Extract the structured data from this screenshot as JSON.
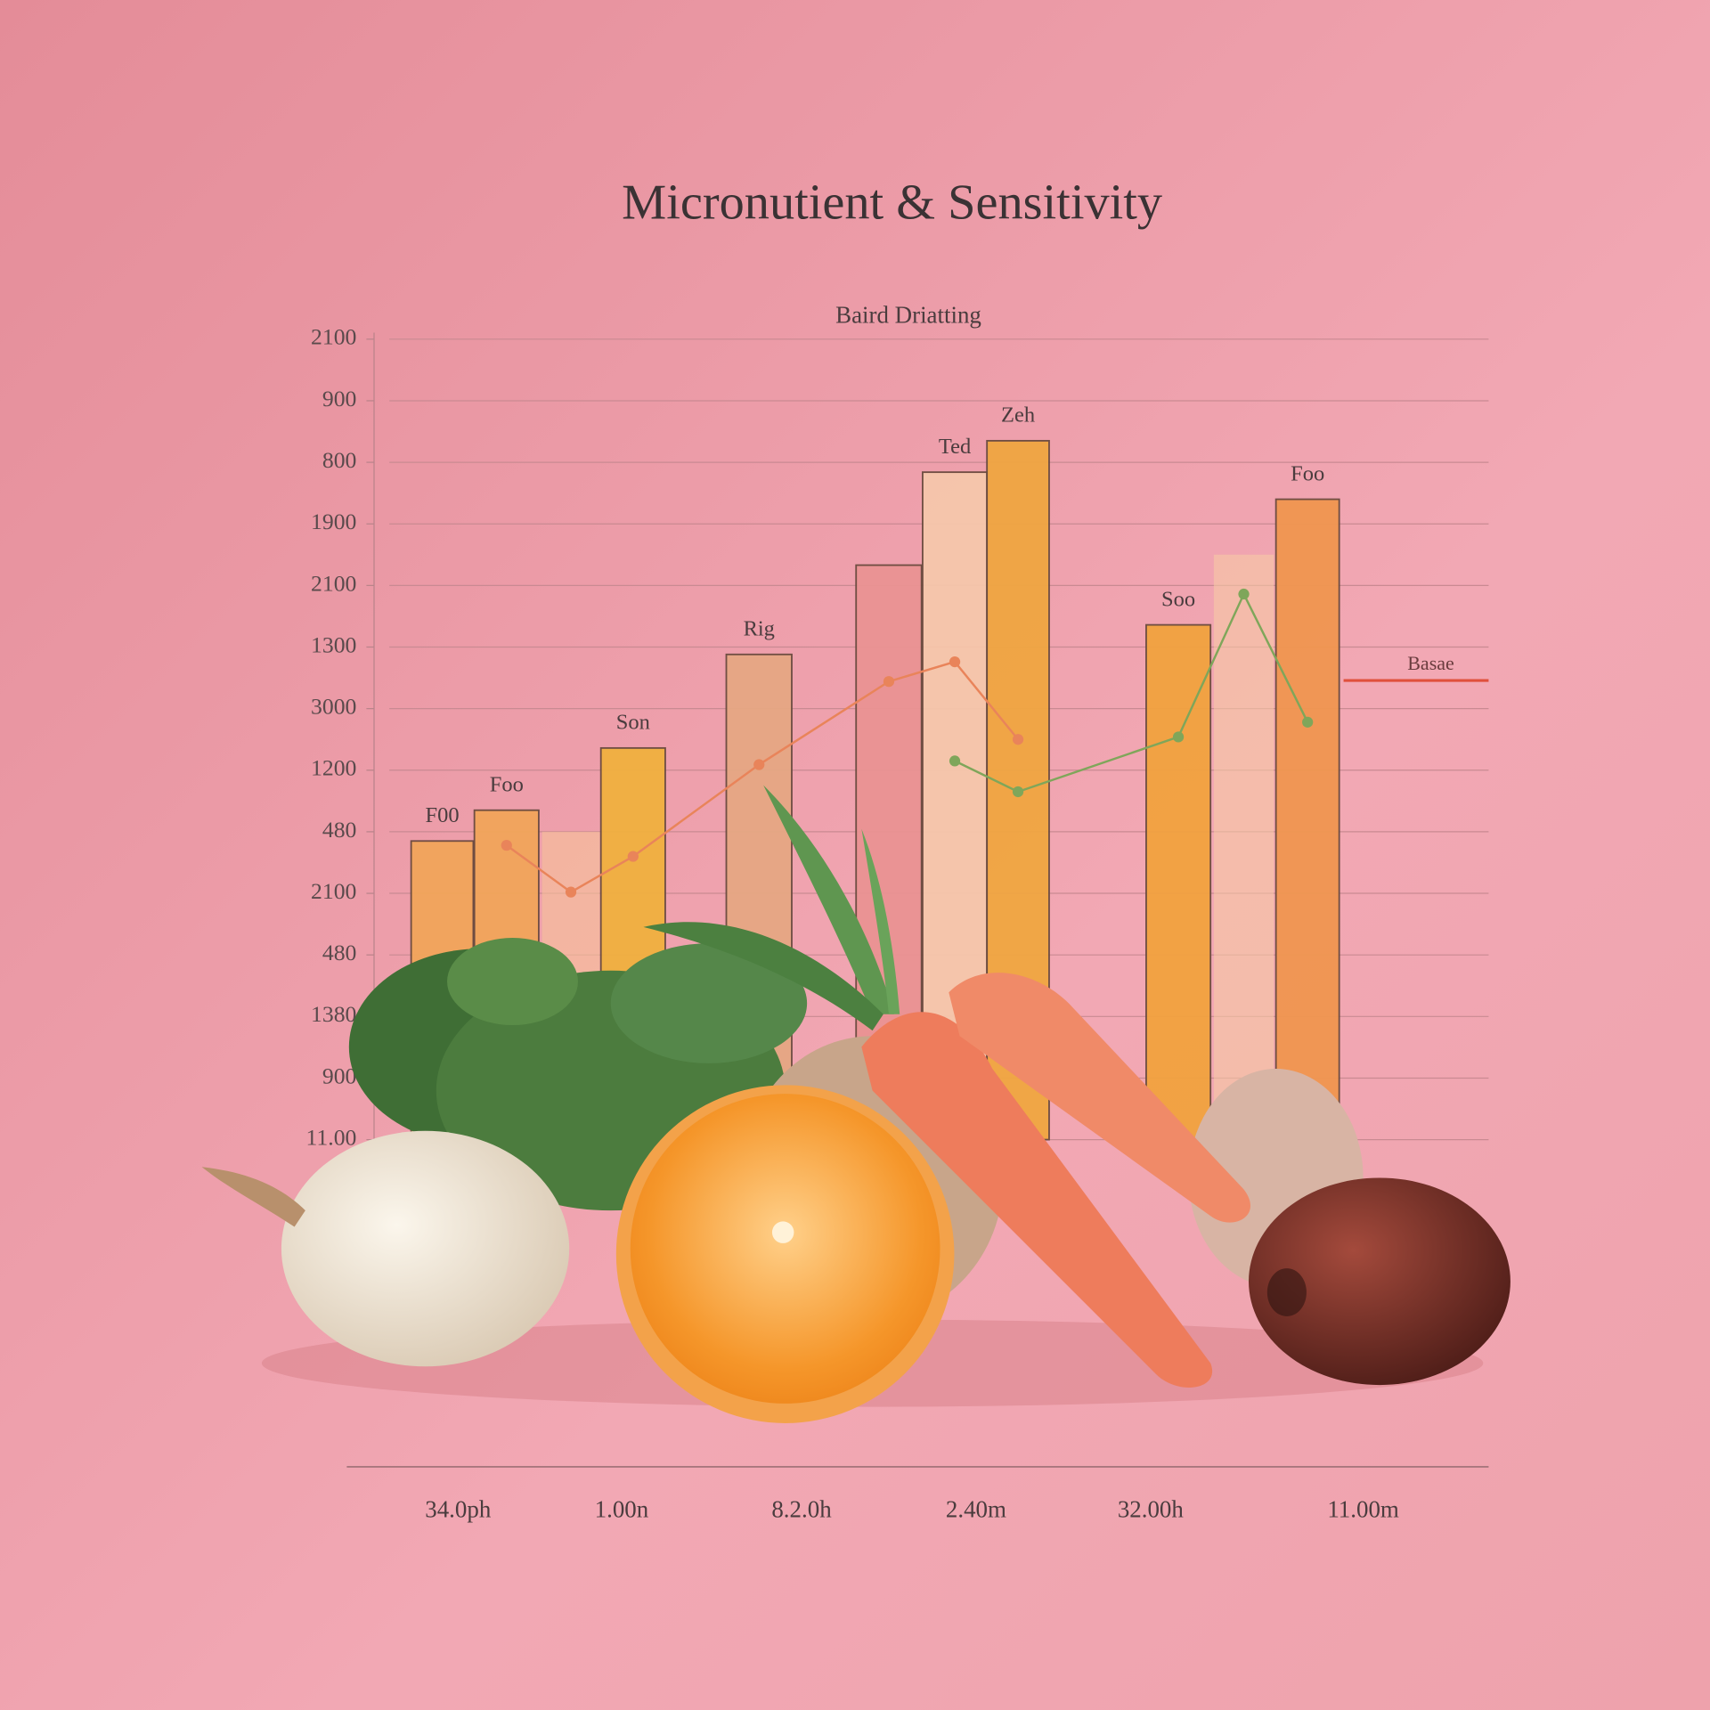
{
  "chart_data": {
    "type": "bar",
    "title": "Micronutient & Sensitivity",
    "subtitle": "Baird Driatting",
    "categories": [
      "F00",
      "Foo",
      null,
      "Son",
      "Rig",
      null,
      "Ted",
      "Zeh",
      "Soo",
      null,
      "Foo"
    ],
    "values": [
      4.85,
      5.35,
      5.0,
      6.36,
      7.88,
      9.33,
      10.84,
      11.35,
      8.36,
      9.5,
      10.4
    ],
    "colors": [
      "#f2a55a",
      "#f2a55a",
      "#f6c39a",
      "#f1b03f",
      "#e6a783",
      "#ea9393",
      "#f6c7ab",
      "#f0a641",
      "#f2a23f",
      "#f7caa5",
      "#f09650"
    ],
    "ylim": [
      0,
      13
    ],
    "yticks": [
      {
        "value": 0,
        "label": "11.00"
      },
      {
        "value": 1,
        "label": "900"
      },
      {
        "value": 2,
        "label": "1380"
      },
      {
        "value": 3,
        "label": "480"
      },
      {
        "value": 4,
        "label": "2100"
      },
      {
        "value": 5,
        "label": "480"
      },
      {
        "value": 6,
        "label": "1200"
      },
      {
        "value": 7,
        "label": "3000"
      },
      {
        "value": 8,
        "label": "1300"
      },
      {
        "value": 9,
        "label": "2100"
      },
      {
        "value": 10,
        "label": "1900"
      },
      {
        "value": 11,
        "label": "800"
      },
      {
        "value": 12,
        "label": "900"
      },
      {
        "value": 13,
        "label": "2100"
      }
    ],
    "grid": true,
    "lines": [
      {
        "color": "#e9845a",
        "values": [
          null,
          4.78,
          4.02,
          4.6,
          6.09,
          7.44,
          7.76,
          6.5,
          null,
          null,
          null
        ]
      },
      {
        "color": "#7fa65a",
        "values": [
          null,
          null,
          null,
          null,
          null,
          null,
          6.15,
          5.65,
          6.54,
          8.86,
          6.78
        ]
      }
    ],
    "annotation": "Basae",
    "x_labels": [
      "34.0ph",
      "1.00n",
      "8.2.0h",
      "2.40m",
      "32.00h",
      "11.00m"
    ]
  }
}
